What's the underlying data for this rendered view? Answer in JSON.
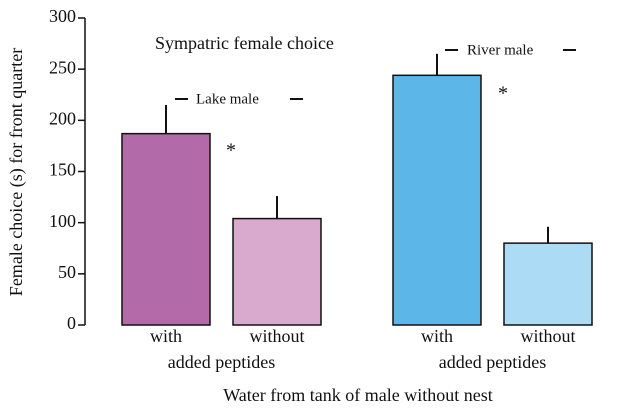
{
  "chart_data": {
    "type": "bar",
    "y_label": "Female choice (s) for front quarter",
    "x_label": "Water from tank of male without nest",
    "categories": [
      "with",
      "without",
      "with",
      "without"
    ],
    "groups": [
      "added peptides",
      "added peptides"
    ],
    "values": [
      187,
      104,
      244,
      80
    ],
    "errors": [
      28,
      22,
      21,
      16
    ],
    "colors": [
      "#b36aa8",
      "#d9aacd",
      "#5cb6e7",
      "#acdcf5"
    ],
    "annotations": [
      "Sympatric female choice",
      "Lake male",
      "River male",
      "*",
      "*"
    ],
    "ylim": [
      0,
      300
    ],
    "yticks": [
      0,
      50,
      100,
      150,
      200,
      250,
      300
    ],
    "grid": false
  }
}
